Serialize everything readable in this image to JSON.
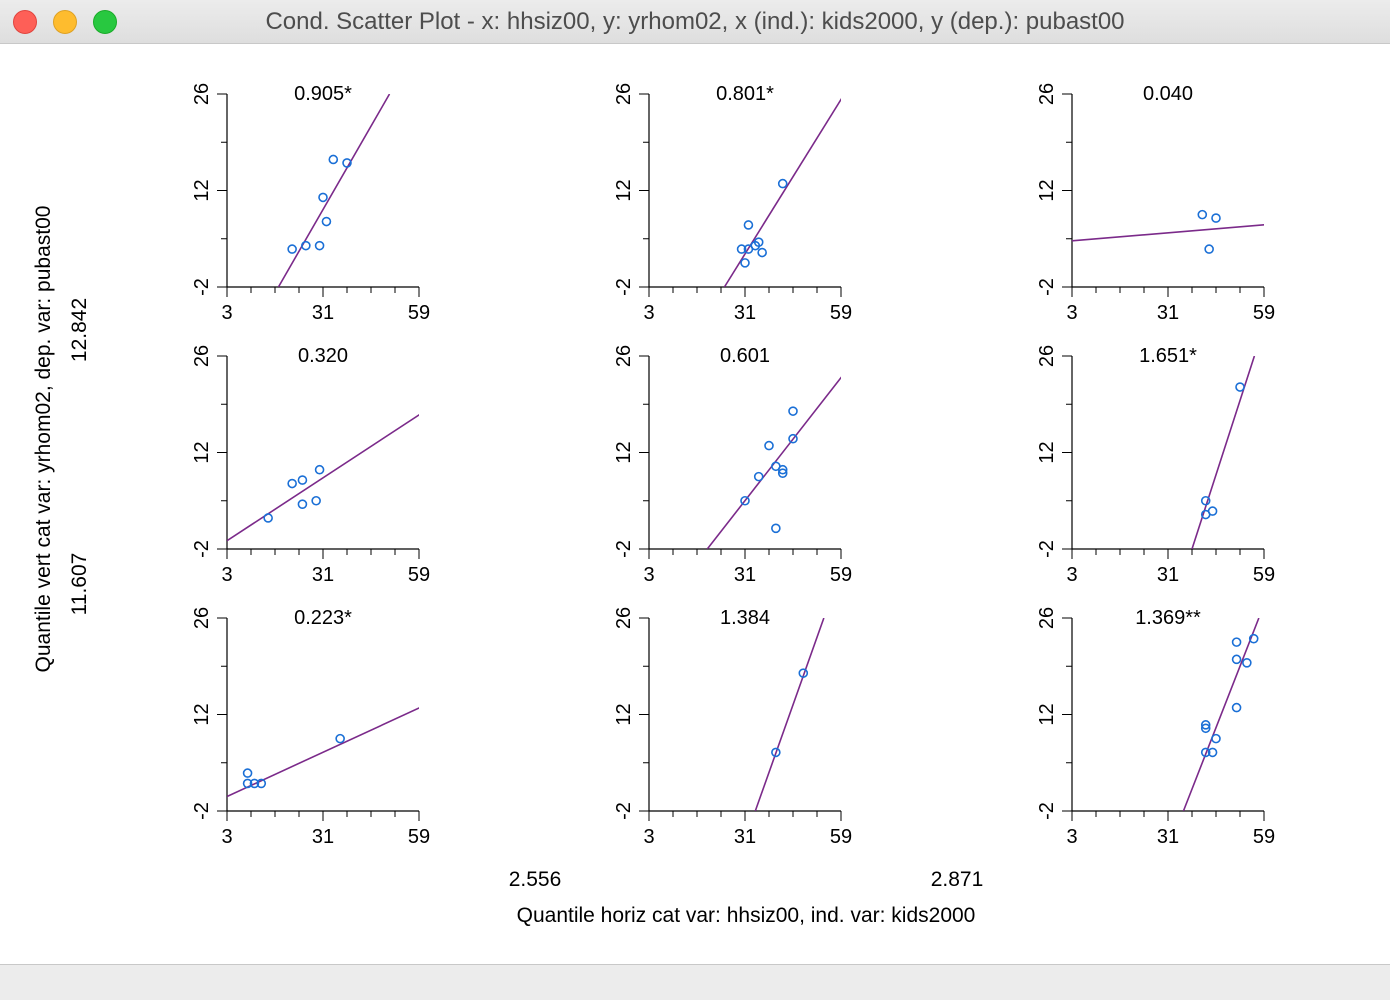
{
  "window": {
    "title": "Cond. Scatter Plot - x: hhsiz00, y: yrhom02, x (ind.): kids2000, y (dep.): pubast00"
  },
  "colors": {
    "regression_line": "#7b2a8a",
    "points": "#1a6fd6",
    "axis": "#000000"
  },
  "axes": {
    "x_ticks": [
      "3",
      "31",
      "59"
    ],
    "y_ticks": [
      "-2",
      "12",
      "26"
    ]
  },
  "labels": {
    "y_axis_title": "Quantile vert cat var: yrhom02,     dep. var: pubast00",
    "y_break_upper": "12.842",
    "y_break_lower": "11.607",
    "x_axis_title": "Quantile horiz cat var: hhsiz00,    ind. var: kids2000",
    "x_break_left": "2.556",
    "x_break_right": "2.871"
  },
  "chart_data": [
    {
      "type": "scatter",
      "panel": "row1-col1",
      "slope_label": "0.905*",
      "xlim": [
        3,
        59
      ],
      "ylim": [
        -2,
        26
      ],
      "points": [
        [
          22,
          3.5
        ],
        [
          26,
          4
        ],
        [
          30,
          4
        ],
        [
          31,
          11
        ],
        [
          32,
          7.5
        ],
        [
          34,
          16.5
        ],
        [
          38,
          16
        ]
      ],
      "line": [
        [
          18,
          -2
        ],
        [
          50.4,
          26
        ]
      ]
    },
    {
      "type": "scatter",
      "panel": "row1-col2",
      "slope_label": "0.801*",
      "xlim": [
        3,
        59
      ],
      "ylim": [
        -2,
        26
      ],
      "points": [
        [
          30,
          3.5
        ],
        [
          31,
          1.5
        ],
        [
          32,
          7
        ],
        [
          32,
          3.5
        ],
        [
          34,
          4
        ],
        [
          35,
          4.5
        ],
        [
          36,
          3
        ],
        [
          42,
          13
        ]
      ],
      "line": [
        [
          25,
          -2
        ],
        [
          60,
          26
        ]
      ]
    },
    {
      "type": "scatter",
      "panel": "row1-col3",
      "slope_label": "0.040",
      "xlim": [
        3,
        59
      ],
      "ylim": [
        -2,
        26
      ],
      "points": [
        [
          41,
          8.5
        ],
        [
          43,
          3.5
        ],
        [
          45,
          8
        ]
      ],
      "line": [
        [
          3,
          4.7
        ],
        [
          61,
          7.1
        ]
      ]
    },
    {
      "type": "scatter",
      "panel": "row2-col1",
      "slope_label": "0.320",
      "xlim": [
        3,
        59
      ],
      "ylim": [
        -2,
        26
      ],
      "points": [
        [
          15,
          2.5
        ],
        [
          22,
          7.5
        ],
        [
          25,
          8
        ],
        [
          25,
          4.5
        ],
        [
          29,
          5
        ],
        [
          30,
          9.5
        ]
      ],
      "line": [
        [
          3,
          -0.8
        ],
        [
          61,
          18.1
        ]
      ]
    },
    {
      "type": "scatter",
      "panel": "row2-col2",
      "slope_label": "0.601",
      "xlim": [
        3,
        59
      ],
      "ylim": [
        -2,
        26
      ],
      "points": [
        [
          31,
          5
        ],
        [
          35,
          8.5
        ],
        [
          38,
          13
        ],
        [
          40,
          10
        ],
        [
          40,
          1
        ],
        [
          42,
          9.5
        ],
        [
          42,
          9
        ],
        [
          45,
          18
        ],
        [
          45,
          14
        ]
      ],
      "line": [
        [
          20,
          -2
        ],
        [
          60,
          23.5
        ]
      ]
    },
    {
      "type": "scatter",
      "panel": "row2-col3",
      "slope_label": "1.651*",
      "xlim": [
        3,
        59
      ],
      "ylim": [
        -2,
        26
      ],
      "points": [
        [
          42,
          5
        ],
        [
          42,
          3
        ],
        [
          44,
          3.5
        ],
        [
          52,
          21.5
        ]
      ],
      "line": [
        [
          38,
          -2
        ],
        [
          56.2,
          26
        ]
      ]
    },
    {
      "type": "scatter",
      "panel": "row3-col1",
      "slope_label": "0.223*",
      "xlim": [
        3,
        59
      ],
      "ylim": [
        -2,
        26
      ],
      "points": [
        [
          9,
          3.5
        ],
        [
          9,
          2
        ],
        [
          11,
          2
        ],
        [
          13,
          2
        ],
        [
          36,
          8.5
        ]
      ],
      "line": [
        [
          3,
          0.1
        ],
        [
          61,
          13.4
        ]
      ]
    },
    {
      "type": "scatter",
      "panel": "row3-col2",
      "slope_label": "1.384",
      "xlim": [
        3,
        59
      ],
      "ylim": [
        -2,
        26
      ],
      "points": [
        [
          40,
          6.5
        ],
        [
          48,
          18
        ]
      ],
      "line": [
        [
          34,
          -2
        ],
        [
          54,
          26
        ]
      ]
    },
    {
      "type": "scatter",
      "panel": "row3-col3",
      "slope_label": "1.369**",
      "xlim": [
        3,
        59
      ],
      "ylim": [
        -2,
        26
      ],
      "points": [
        [
          42,
          6.5
        ],
        [
          42,
          10
        ],
        [
          42,
          10.5
        ],
        [
          44,
          6.5
        ],
        [
          45,
          8.5
        ],
        [
          51,
          13
        ],
        [
          51,
          20
        ],
        [
          51,
          22.5
        ],
        [
          54,
          19.5
        ],
        [
          56,
          23
        ]
      ],
      "line": [
        [
          35.5,
          -2
        ],
        [
          57.5,
          26
        ]
      ]
    }
  ]
}
